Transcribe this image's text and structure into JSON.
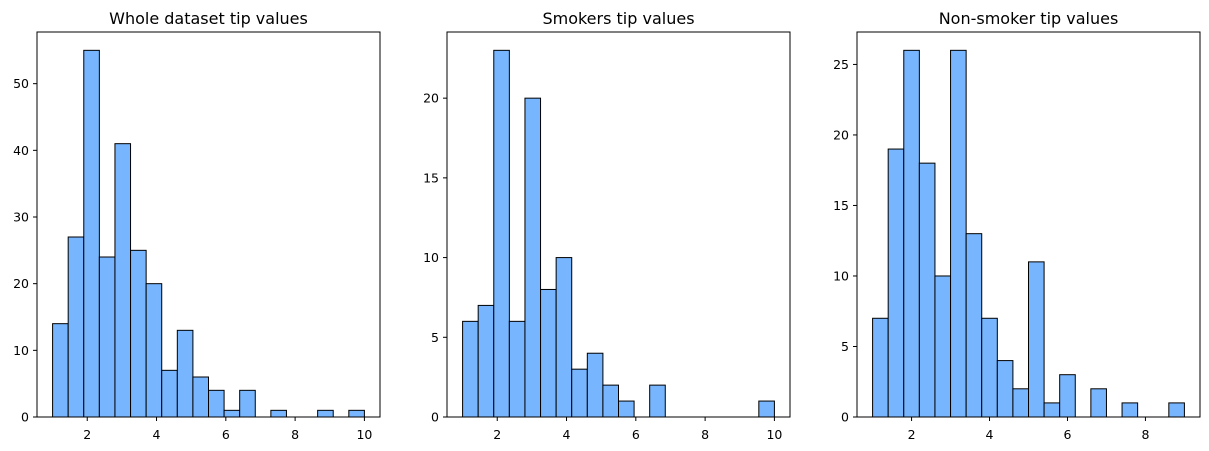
{
  "chart_data": [
    {
      "type": "bar",
      "title": "Whole dataset tip values",
      "xlabel": "",
      "ylabel": "",
      "bar_color": "#77b5fe",
      "xlim": [
        0.55,
        10.45
      ],
      "ylim": [
        0,
        57.75
      ],
      "xticks": [
        2,
        4,
        6,
        8,
        10
      ],
      "yticks": [
        0,
        10,
        20,
        30,
        40,
        50
      ],
      "bin_edges": [
        1.0,
        1.45,
        1.9,
        2.35,
        2.8,
        3.25,
        3.7,
        4.15,
        4.6,
        5.05,
        5.5,
        5.95,
        6.4,
        6.85,
        7.3,
        7.75,
        8.2,
        8.65,
        9.1,
        9.55,
        10.0
      ],
      "values": [
        14,
        27,
        55,
        24,
        41,
        25,
        20,
        7,
        13,
        6,
        4,
        1,
        4,
        0,
        1,
        0,
        0,
        1,
        0,
        1
      ]
    },
    {
      "type": "bar",
      "title": "Smokers tip values",
      "xlabel": "",
      "ylabel": "",
      "bar_color": "#77b5fe",
      "xlim": [
        0.55,
        10.45
      ],
      "ylim": [
        0,
        24.15
      ],
      "xticks": [
        2,
        4,
        6,
        8,
        10
      ],
      "yticks": [
        0,
        5,
        10,
        15,
        20
      ],
      "bin_edges": [
        1.0,
        1.45,
        1.9,
        2.35,
        2.8,
        3.25,
        3.7,
        4.15,
        4.6,
        5.05,
        5.5,
        5.95,
        6.4,
        6.85,
        7.3,
        7.75,
        8.2,
        8.65,
        9.1,
        9.55,
        10.0
      ],
      "values": [
        6,
        7,
        23,
        6,
        20,
        8,
        10,
        3,
        4,
        2,
        1,
        0,
        2,
        0,
        0,
        0,
        0,
        0,
        0,
        1
      ]
    },
    {
      "type": "bar",
      "title": "Non-smoker tip values",
      "xlabel": "",
      "ylabel": "",
      "bar_color": "#77b5fe",
      "xlim": [
        0.6,
        9.4
      ],
      "ylim": [
        0,
        27.3
      ],
      "xticks": [
        2,
        4,
        6,
        8
      ],
      "yticks": [
        0,
        5,
        10,
        15,
        20,
        25
      ],
      "bin_edges": [
        1.0,
        1.4,
        1.8,
        2.2,
        2.6,
        3.0,
        3.4,
        3.8,
        4.2,
        4.6,
        5.0,
        5.4,
        5.8,
        6.2,
        6.6,
        7.0,
        7.4,
        7.8,
        8.2,
        8.6,
        9.0
      ],
      "values": [
        7,
        19,
        26,
        18,
        10,
        26,
        13,
        7,
        4,
        2,
        11,
        1,
        3,
        0,
        2,
        0,
        1,
        0,
        0,
        1
      ]
    }
  ]
}
